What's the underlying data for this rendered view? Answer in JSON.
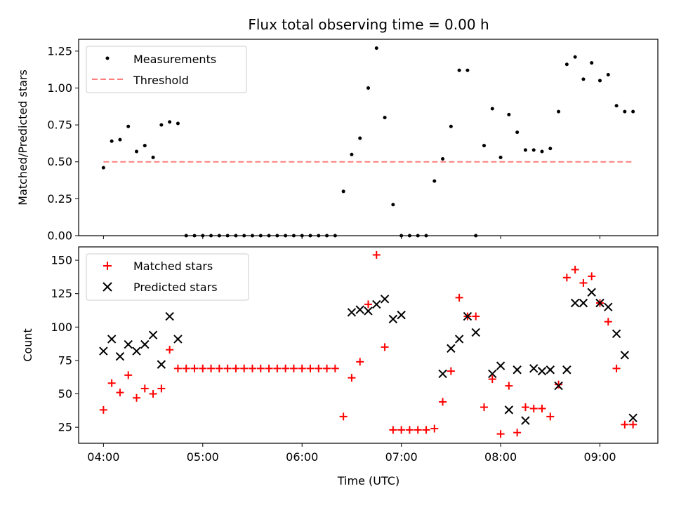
{
  "title": "Flux total observing time = 0.00 h",
  "colors": {
    "measurement": "#000000",
    "threshold": "#ff7f7f",
    "matched": "#ff0000",
    "predicted": "#000000"
  },
  "chart_data": [
    {
      "type": "scatter",
      "ylabel": "Matched/Predicted stars",
      "ylim": [
        0,
        1.33
      ],
      "yticks": [
        "0.00",
        "0.25",
        "0.50",
        "0.75",
        "1.00",
        "1.25"
      ],
      "xlim": [
        "03:45",
        "09:35"
      ],
      "legend": {
        "placement": "top-left",
        "entries": [
          "Measurements",
          "Threshold"
        ]
      },
      "threshold": {
        "name": "Threshold",
        "y": 0.5,
        "x_start": "04:00",
        "x_end": "09:20"
      },
      "series": [
        {
          "name": "Measurements",
          "x": [
            "04:00",
            "04:05",
            "04:10",
            "04:15",
            "04:20",
            "04:25",
            "04:30",
            "04:35",
            "04:40",
            "04:45",
            "04:50",
            "04:55",
            "05:00",
            "05:05",
            "05:10",
            "05:15",
            "05:20",
            "05:25",
            "05:30",
            "05:35",
            "05:40",
            "05:45",
            "05:50",
            "05:55",
            "06:00",
            "06:05",
            "06:10",
            "06:15",
            "06:20",
            "06:25",
            "06:30",
            "06:35",
            "06:40",
            "06:45",
            "06:50",
            "06:55",
            "07:00",
            "07:05",
            "07:10",
            "07:15",
            "07:20",
            "07:25",
            "07:30",
            "07:35",
            "07:40",
            "07:45",
            "07:50",
            "07:55",
            "08:00",
            "08:05",
            "08:10",
            "08:15",
            "08:20",
            "08:25",
            "08:30",
            "08:35",
            "08:40",
            "08:45",
            "08:50",
            "08:55",
            "09:00",
            "09:05",
            "09:10",
            "09:15",
            "09:20"
          ],
          "y": [
            0.46,
            0.64,
            0.65,
            0.74,
            0.57,
            0.61,
            0.53,
            0.75,
            0.77,
            0.76,
            0,
            0,
            0,
            0,
            0,
            0,
            0,
            0,
            0,
            0,
            0,
            0,
            0,
            0,
            0,
            0,
            0,
            0,
            0,
            0.3,
            0.55,
            0.66,
            1.0,
            1.27,
            0.8,
            0.21,
            0,
            0,
            0,
            0,
            0.37,
            0.52,
            0.74,
            1.12,
            1.12,
            0,
            0.61,
            0.86,
            0.53,
            0.82,
            0.7,
            0.58,
            0.58,
            0.57,
            0.59,
            0.84,
            1.16,
            1.21,
            1.06,
            1.17,
            1.05,
            1.09,
            0.88,
            0.84,
            0.84
          ]
        }
      ]
    },
    {
      "type": "scatter",
      "xlabel": "Time (UTC)",
      "ylabel": "Count",
      "ylim": [
        13,
        160
      ],
      "yticks": [
        "25",
        "50",
        "75",
        "100",
        "125",
        "150"
      ],
      "xlim": [
        "03:45",
        "09:35"
      ],
      "xticks": [
        "04:00",
        "05:00",
        "06:00",
        "07:00",
        "08:00",
        "09:00"
      ],
      "legend": {
        "placement": "top-left",
        "entries": [
          "Matched stars",
          "Predicted stars"
        ]
      },
      "series": [
        {
          "name": "Matched stars",
          "x": [
            "04:00",
            "04:05",
            "04:10",
            "04:15",
            "04:20",
            "04:25",
            "04:30",
            "04:35",
            "04:40",
            "04:45",
            "04:50",
            "04:55",
            "05:00",
            "05:05",
            "05:10",
            "05:15",
            "05:20",
            "05:25",
            "05:30",
            "05:35",
            "05:40",
            "05:45",
            "05:50",
            "05:55",
            "06:00",
            "06:05",
            "06:10",
            "06:15",
            "06:20",
            "06:25",
            "06:30",
            "06:35",
            "06:40",
            "06:45",
            "06:50",
            "06:55",
            "07:00",
            "07:05",
            "07:10",
            "07:15",
            "07:20",
            "07:25",
            "07:30",
            "07:35",
            "07:40",
            "07:45",
            "07:50",
            "07:55",
            "08:00",
            "08:05",
            "08:10",
            "08:15",
            "08:20",
            "08:25",
            "08:30",
            "08:35",
            "08:40",
            "08:45",
            "08:50",
            "08:55",
            "09:00",
            "09:05",
            "09:10",
            "09:15",
            "09:20"
          ],
          "y": [
            38,
            58,
            51,
            64,
            47,
            54,
            50,
            54,
            83,
            69,
            69,
            69,
            69,
            69,
            69,
            69,
            69,
            69,
            69,
            69,
            69,
            69,
            69,
            69,
            69,
            69,
            69,
            69,
            69,
            33,
            62,
            74,
            117,
            154,
            85,
            23,
            23,
            23,
            23,
            23,
            24,
            44,
            67,
            122,
            108,
            108,
            40,
            61,
            20,
            56,
            21,
            40,
            39,
            39,
            33,
            57,
            137,
            143,
            133,
            138,
            118,
            104,
            69,
            27,
            27
          ]
        },
        {
          "name": "Predicted stars",
          "x": [
            "04:00",
            "04:05",
            "04:10",
            "04:15",
            "04:20",
            "04:25",
            "04:30",
            "04:35",
            "04:40",
            "04:45",
            "06:30",
            "06:35",
            "06:40",
            "06:45",
            "06:50",
            "06:55",
            "07:00",
            "07:25",
            "07:30",
            "07:35",
            "07:40",
            "07:45",
            "07:55",
            "08:00",
            "08:05",
            "08:10",
            "08:15",
            "08:20",
            "08:25",
            "08:30",
            "08:35",
            "08:40",
            "08:45",
            "08:50",
            "08:55",
            "09:00",
            "09:05",
            "09:10",
            "09:15",
            "09:20"
          ],
          "y": [
            82,
            91,
            78,
            87,
            82,
            87,
            94,
            72,
            108,
            91,
            111,
            113,
            112,
            117,
            121,
            106,
            109,
            65,
            84,
            91,
            108,
            96,
            65,
            71,
            38,
            68,
            30,
            69,
            67,
            68,
            56,
            68,
            118,
            118,
            126,
            118,
            115,
            95,
            79,
            32
          ]
        }
      ]
    }
  ]
}
